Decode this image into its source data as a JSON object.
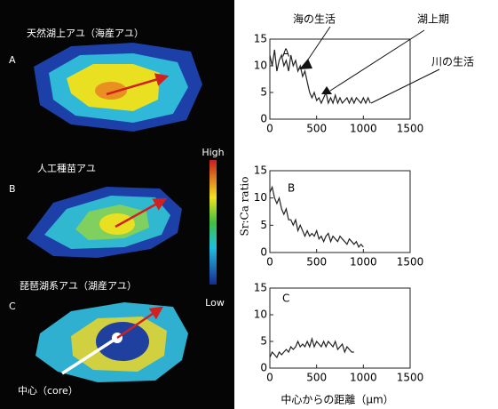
{
  "otolith_panel": {
    "panels": [
      {
        "label": "A",
        "title": "天然湖上アユ（海産アユ）"
      },
      {
        "label": "B",
        "title": "人工種苗アユ"
      },
      {
        "label": "C",
        "title": "琵琶湖系アユ（湖産アユ）"
      }
    ],
    "colorbar": {
      "high": "High",
      "low": "Low"
    },
    "core_label": "中心（core）"
  },
  "chart_data": [
    {
      "type": "line",
      "label": "A",
      "annotations": [
        "海の生活",
        "湖上期",
        "川の生活"
      ],
      "color": "#222222",
      "x": [
        0,
        25,
        50,
        75,
        100,
        125,
        150,
        175,
        200,
        225,
        250,
        275,
        300,
        325,
        350,
        375,
        400,
        425,
        450,
        475,
        500,
        525,
        550,
        575,
        600,
        625,
        650,
        675,
        700,
        725,
        750,
        775,
        800,
        825,
        850,
        875,
        900,
        925,
        950,
        975,
        1000,
        1025,
        1050,
        1075
      ],
      "values": [
        12,
        10,
        13,
        9,
        11,
        12,
        10,
        11,
        9,
        12,
        10,
        11,
        9,
        10,
        8,
        9,
        7,
        5,
        4,
        5,
        3.5,
        4,
        3,
        4,
        5,
        3,
        4,
        3,
        4.5,
        3,
        4,
        3,
        3.5,
        4,
        3,
        4,
        3,
        4,
        3.5,
        3,
        4,
        3,
        4,
        3
      ],
      "xlim": [
        0,
        1500
      ],
      "xticks": [
        0,
        500,
        1000,
        1500
      ],
      "ylim": [
        0,
        15
      ],
      "yticks": [
        0,
        5,
        10,
        15
      ]
    },
    {
      "type": "line",
      "label": "B",
      "ylabel": "Sr:Ca ratio",
      "color": "#222222",
      "x": [
        0,
        25,
        50,
        75,
        100,
        125,
        150,
        175,
        200,
        225,
        250,
        275,
        300,
        325,
        350,
        375,
        400,
        425,
        450,
        475,
        500,
        525,
        550,
        575,
        600,
        625,
        650,
        675,
        700,
        725,
        750,
        775,
        800,
        825,
        850,
        875,
        900,
        925,
        950,
        975,
        1000
      ],
      "values": [
        11,
        12,
        10,
        9,
        10,
        8,
        7,
        8,
        6,
        6,
        5,
        6,
        4,
        5,
        4,
        3,
        4,
        3,
        3.5,
        3,
        4,
        2.5,
        3,
        2,
        3,
        3.5,
        2,
        3,
        2.5,
        2,
        3,
        2.5,
        2,
        1.5,
        2.5,
        2,
        1.5,
        2,
        1,
        1.5,
        1
      ],
      "xlim": [
        0,
        1500
      ],
      "xticks": [
        0,
        500,
        1000,
        1500
      ],
      "ylim": [
        0,
        15
      ],
      "yticks": [
        0,
        5,
        10,
        15
      ]
    },
    {
      "type": "line",
      "label": "C",
      "xlabel": "中心からの距離（μm）",
      "color": "#222222",
      "x": [
        0,
        25,
        50,
        75,
        100,
        125,
        150,
        175,
        200,
        225,
        250,
        275,
        300,
        325,
        350,
        375,
        400,
        425,
        450,
        475,
        500,
        525,
        550,
        575,
        600,
        625,
        650,
        675,
        700,
        725,
        750,
        775,
        800,
        825,
        850,
        875,
        900
      ],
      "values": [
        2,
        3,
        2.5,
        2,
        3,
        2.5,
        3,
        3.5,
        3,
        4,
        3.5,
        4,
        5,
        4,
        4.5,
        4,
        5,
        4,
        5.5,
        4,
        5,
        4.5,
        4,
        5,
        4,
        5,
        4.5,
        4,
        5,
        3.5,
        4,
        4.5,
        3,
        4,
        3.5,
        3,
        3
      ],
      "xlim": [
        0,
        1500
      ],
      "xticks": [
        0,
        500,
        1000,
        1500
      ],
      "ylim": [
        0,
        15
      ],
      "yticks": [
        0,
        5,
        10,
        15
      ]
    }
  ]
}
